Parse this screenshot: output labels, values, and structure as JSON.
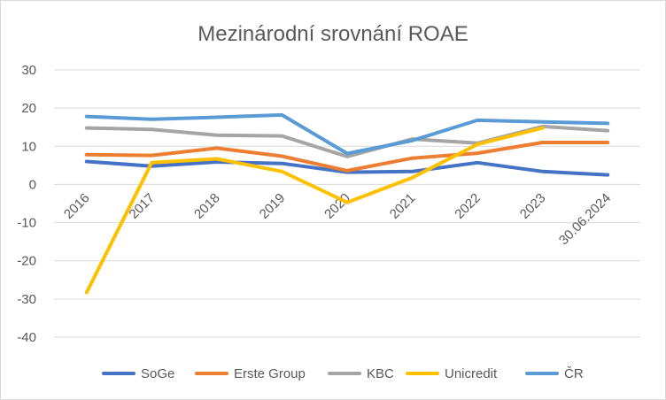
{
  "chart_data": {
    "type": "line",
    "title": "Mezinárodní srovnání ROAE",
    "xlabel": "",
    "ylabel": "",
    "categories": [
      "2016",
      "2017",
      "2018",
      "2019",
      "2020",
      "2021",
      "2022",
      "2023",
      "30.06.2024"
    ],
    "ylim": [
      -40,
      30
    ],
    "yticks": [
      30,
      20,
      10,
      0,
      -10,
      -20,
      -30,
      -40
    ],
    "grid": true,
    "legend_position": "bottom",
    "series": [
      {
        "name": "SoGe",
        "color": "#4472C4",
        "values": [
          6,
          4.8,
          5.9,
          5.5,
          3.2,
          3.4,
          5.7,
          3.4,
          2.5
        ]
      },
      {
        "name": "Erste Group",
        "color": "#ED7D31",
        "values": [
          7.8,
          7.6,
          9.5,
          7.4,
          3.6,
          6.9,
          8.2,
          11,
          11
        ]
      },
      {
        "name": "KBC",
        "color": "#A5A5A5",
        "values": [
          14.8,
          14.4,
          12.9,
          12.7,
          7.3,
          11.9,
          10.8,
          15.2,
          14.1
        ]
      },
      {
        "name": "Unicredit",
        "color": "#FFC000",
        "values": [
          -28.3,
          5.7,
          6.7,
          3.4,
          -4.7,
          1.8,
          10.5,
          14.8,
          null
        ]
      },
      {
        "name": "ČR",
        "color": "#5B9BD5",
        "values": [
          17.8,
          17.1,
          17.6,
          18.2,
          8.1,
          11.5,
          16.8,
          16.4,
          16
        ]
      }
    ]
  }
}
